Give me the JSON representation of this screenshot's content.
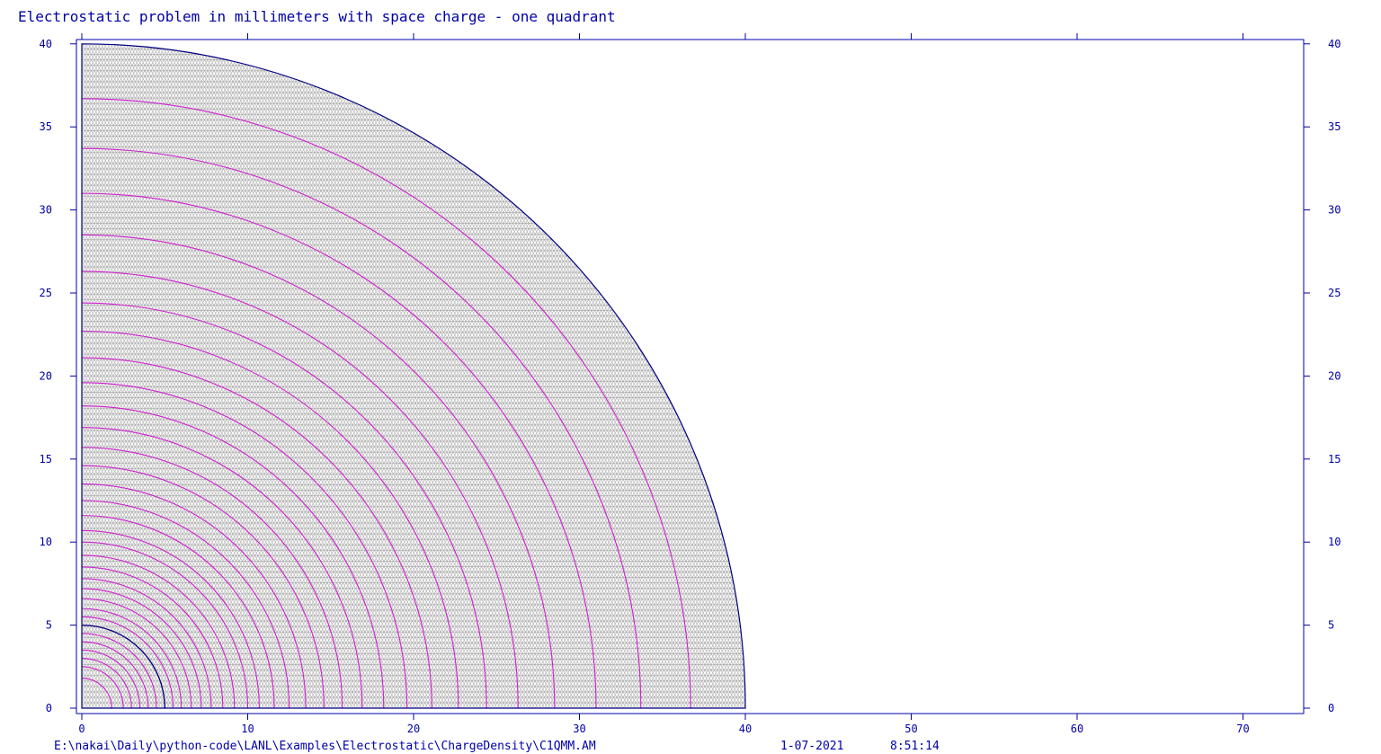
{
  "plot": {
    "title": "Electrostatic problem in millimeters with space charge - one quadrant",
    "footer": {
      "path": "E:\\nakai\\Daily\\python-code\\LANL\\Examples\\Electrostatic\\ChargeDensity\\C1QMM.AM",
      "date": "1-07-2021",
      "time": "8:51:14"
    },
    "x_ticks": [
      "0",
      "10",
      "20",
      "30",
      "40",
      "50",
      "60",
      "70"
    ],
    "y_ticks": [
      "0",
      "5",
      "10",
      "15",
      "20",
      "25",
      "30",
      "35",
      "40"
    ],
    "colors": {
      "text": "#0000a8",
      "frame": "#0000a8",
      "boundary": "#000080",
      "contour": "#d020d0",
      "mesh": "#a8a8a8"
    }
  },
  "chart_data": {
    "type": "contour",
    "domain": "quarter circle, radius 40 mm, first quadrant",
    "xlim": [
      0,
      73.5
    ],
    "ylim": [
      0,
      40
    ],
    "x_ticks": [
      0,
      10,
      20,
      30,
      40,
      50,
      60,
      70
    ],
    "y_ticks": [
      0,
      5,
      10,
      15,
      20,
      25,
      30,
      35,
      40
    ],
    "outer_boundary_radius": 40,
    "inner_region_radius": 5,
    "contour_radii": [
      1.8,
      2.5,
      3.0,
      3.5,
      4.0,
      4.5,
      5.0,
      5.5,
      6.0,
      6.6,
      7.2,
      7.8,
      8.5,
      9.2,
      10.0,
      10.7,
      11.6,
      12.5,
      13.5,
      14.6,
      15.7,
      16.9,
      18.2,
      19.6,
      21.1,
      22.7,
      24.4,
      26.3,
      28.5,
      31.0,
      33.7,
      36.7
    ],
    "grid": false,
    "mesh": "triangular"
  }
}
